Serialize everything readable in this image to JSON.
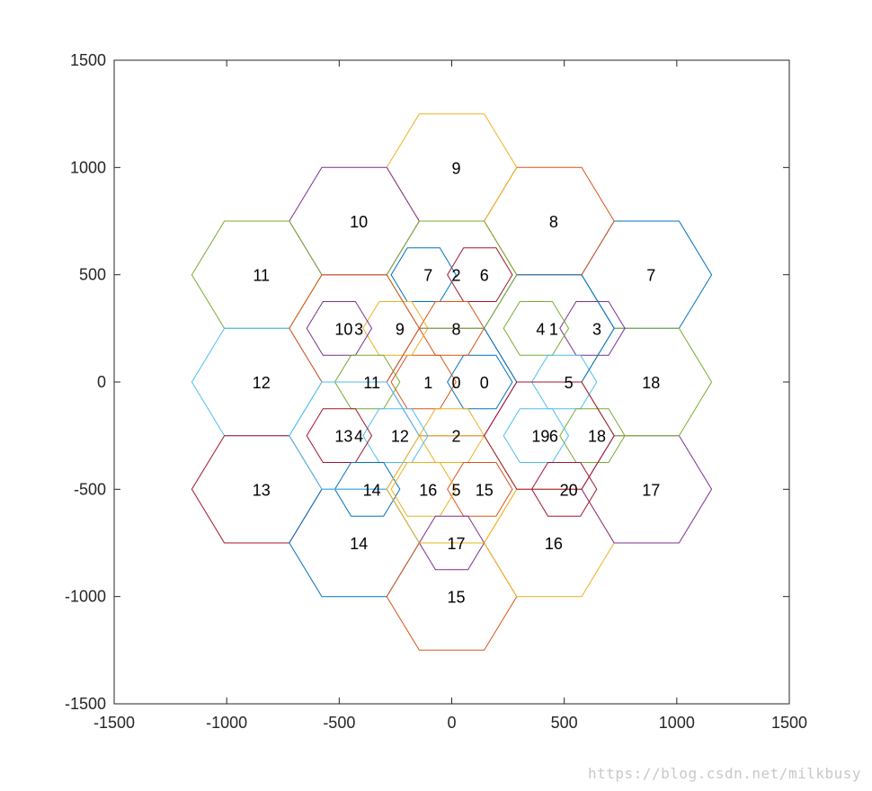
{
  "watermark": "https://blog.csdn.net/milkbusy",
  "chart_data": {
    "type": "line",
    "title": "",
    "xlabel": "",
    "ylabel": "",
    "xlim": [
      -1500,
      1500
    ],
    "ylim": [
      -1500,
      1500
    ],
    "xticks": [
      -1500,
      -1000,
      -500,
      0,
      500,
      1000,
      1500
    ],
    "yticks": [
      -1500,
      -1000,
      -500,
      0,
      500,
      1000,
      1500
    ],
    "grid": false,
    "box": true,
    "palette": [
      "#0072BD",
      "#D95319",
      "#EDB120",
      "#7E2F8E",
      "#77AC30",
      "#4DBEEE",
      "#A2142F"
    ],
    "series": [
      {
        "group": "large",
        "radius": 288.68,
        "cells": [
          {
            "label": "7",
            "x": 866,
            "y": 500,
            "color": "#0072BD"
          },
          {
            "label": "8",
            "x": 433,
            "y": 750,
            "color": "#D95319"
          },
          {
            "label": "9",
            "x": 0,
            "y": 1000,
            "color": "#EDB120"
          },
          {
            "label": "10",
            "x": -433,
            "y": 750,
            "color": "#7E2F8E"
          },
          {
            "label": "11",
            "x": -866,
            "y": 500,
            "color": "#77AC30"
          },
          {
            "label": "12",
            "x": -866,
            "y": 0,
            "color": "#4DBEEE"
          },
          {
            "label": "13",
            "x": -866,
            "y": -500,
            "color": "#A2142F"
          },
          {
            "label": "14",
            "x": -433,
            "y": -750,
            "color": "#0072BD"
          },
          {
            "label": "15",
            "x": 0,
            "y": -1000,
            "color": "#D95319"
          },
          {
            "label": "16",
            "x": 433,
            "y": -750,
            "color": "#EDB120"
          },
          {
            "label": "17",
            "x": 866,
            "y": -500,
            "color": "#7E2F8E"
          },
          {
            "label": "18",
            "x": 866,
            "y": 0,
            "color": "#77AC30"
          }
        ]
      },
      {
        "group": "small",
        "radius": 144.34,
        "cells": [
          {
            "label": "0",
            "x": 125,
            "y": 0,
            "color": "#0072BD"
          },
          {
            "label": "1",
            "x": -125,
            "y": 0,
            "color": "#D95319"
          },
          {
            "label": "2",
            "x": 0,
            "y": -250,
            "color": "#EDB120"
          },
          {
            "label": "3",
            "x": 625,
            "y": 250,
            "color": "#7E2F8E"
          },
          {
            "label": "4",
            "x": 375,
            "y": 250,
            "color": "#77AC30"
          },
          {
            "label": "5",
            "x": 500,
            "y": 0,
            "color": "#4DBEEE"
          },
          {
            "label": "6",
            "x": 125,
            "y": 500,
            "color": "#A2142F"
          },
          {
            "label": "7",
            "x": -125,
            "y": 500,
            "color": "#0072BD"
          },
          {
            "label": "8",
            "x": 0,
            "y": 250,
            "color": "#D95319"
          },
          {
            "label": "9",
            "x": -250,
            "y": 250,
            "color": "#EDB120"
          },
          {
            "label": "10",
            "x": -500,
            "y": 250,
            "color": "#7E2F8E"
          },
          {
            "label": "11",
            "x": -375,
            "y": 0,
            "color": "#77AC30"
          },
          {
            "label": "12",
            "x": -250,
            "y": -250,
            "color": "#4DBEEE"
          },
          {
            "label": "13",
            "x": -500,
            "y": -250,
            "color": "#A2142F"
          },
          {
            "label": "14",
            "x": -375,
            "y": -500,
            "color": "#0072BD"
          },
          {
            "label": "15",
            "x": 125,
            "y": -500,
            "color": "#D95319"
          },
          {
            "label": "16",
            "x": -125,
            "y": -500,
            "color": "#EDB120"
          },
          {
            "label": "17",
            "x": 0,
            "y": -750,
            "color": "#7E2F8E"
          },
          {
            "label": "18",
            "x": 625,
            "y": -250,
            "color": "#77AC30"
          },
          {
            "label": "19",
            "x": 375,
            "y": -250,
            "color": "#4DBEEE"
          },
          {
            "label": "20",
            "x": 500,
            "y": -500,
            "color": "#A2142F"
          }
        ]
      },
      {
        "group": "medium",
        "radius": 288.68,
        "cells": [
          {
            "label": "0",
            "x": 0,
            "y": 0,
            "color": "#7E2F8E"
          },
          {
            "label": "1",
            "x": 433,
            "y": 250,
            "color": "#0072BD"
          },
          {
            "label": "2",
            "x": 0,
            "y": 500,
            "color": "#77AC30"
          },
          {
            "label": "3",
            "x": -433,
            "y": 250,
            "color": "#D95319"
          },
          {
            "label": "4",
            "x": -433,
            "y": -250,
            "color": "#4DBEEE"
          },
          {
            "label": "5",
            "x": 0,
            "y": -500,
            "color": "#EDB120"
          },
          {
            "label": "6",
            "x": 433,
            "y": -250,
            "color": "#A2142F"
          }
        ]
      }
    ]
  }
}
